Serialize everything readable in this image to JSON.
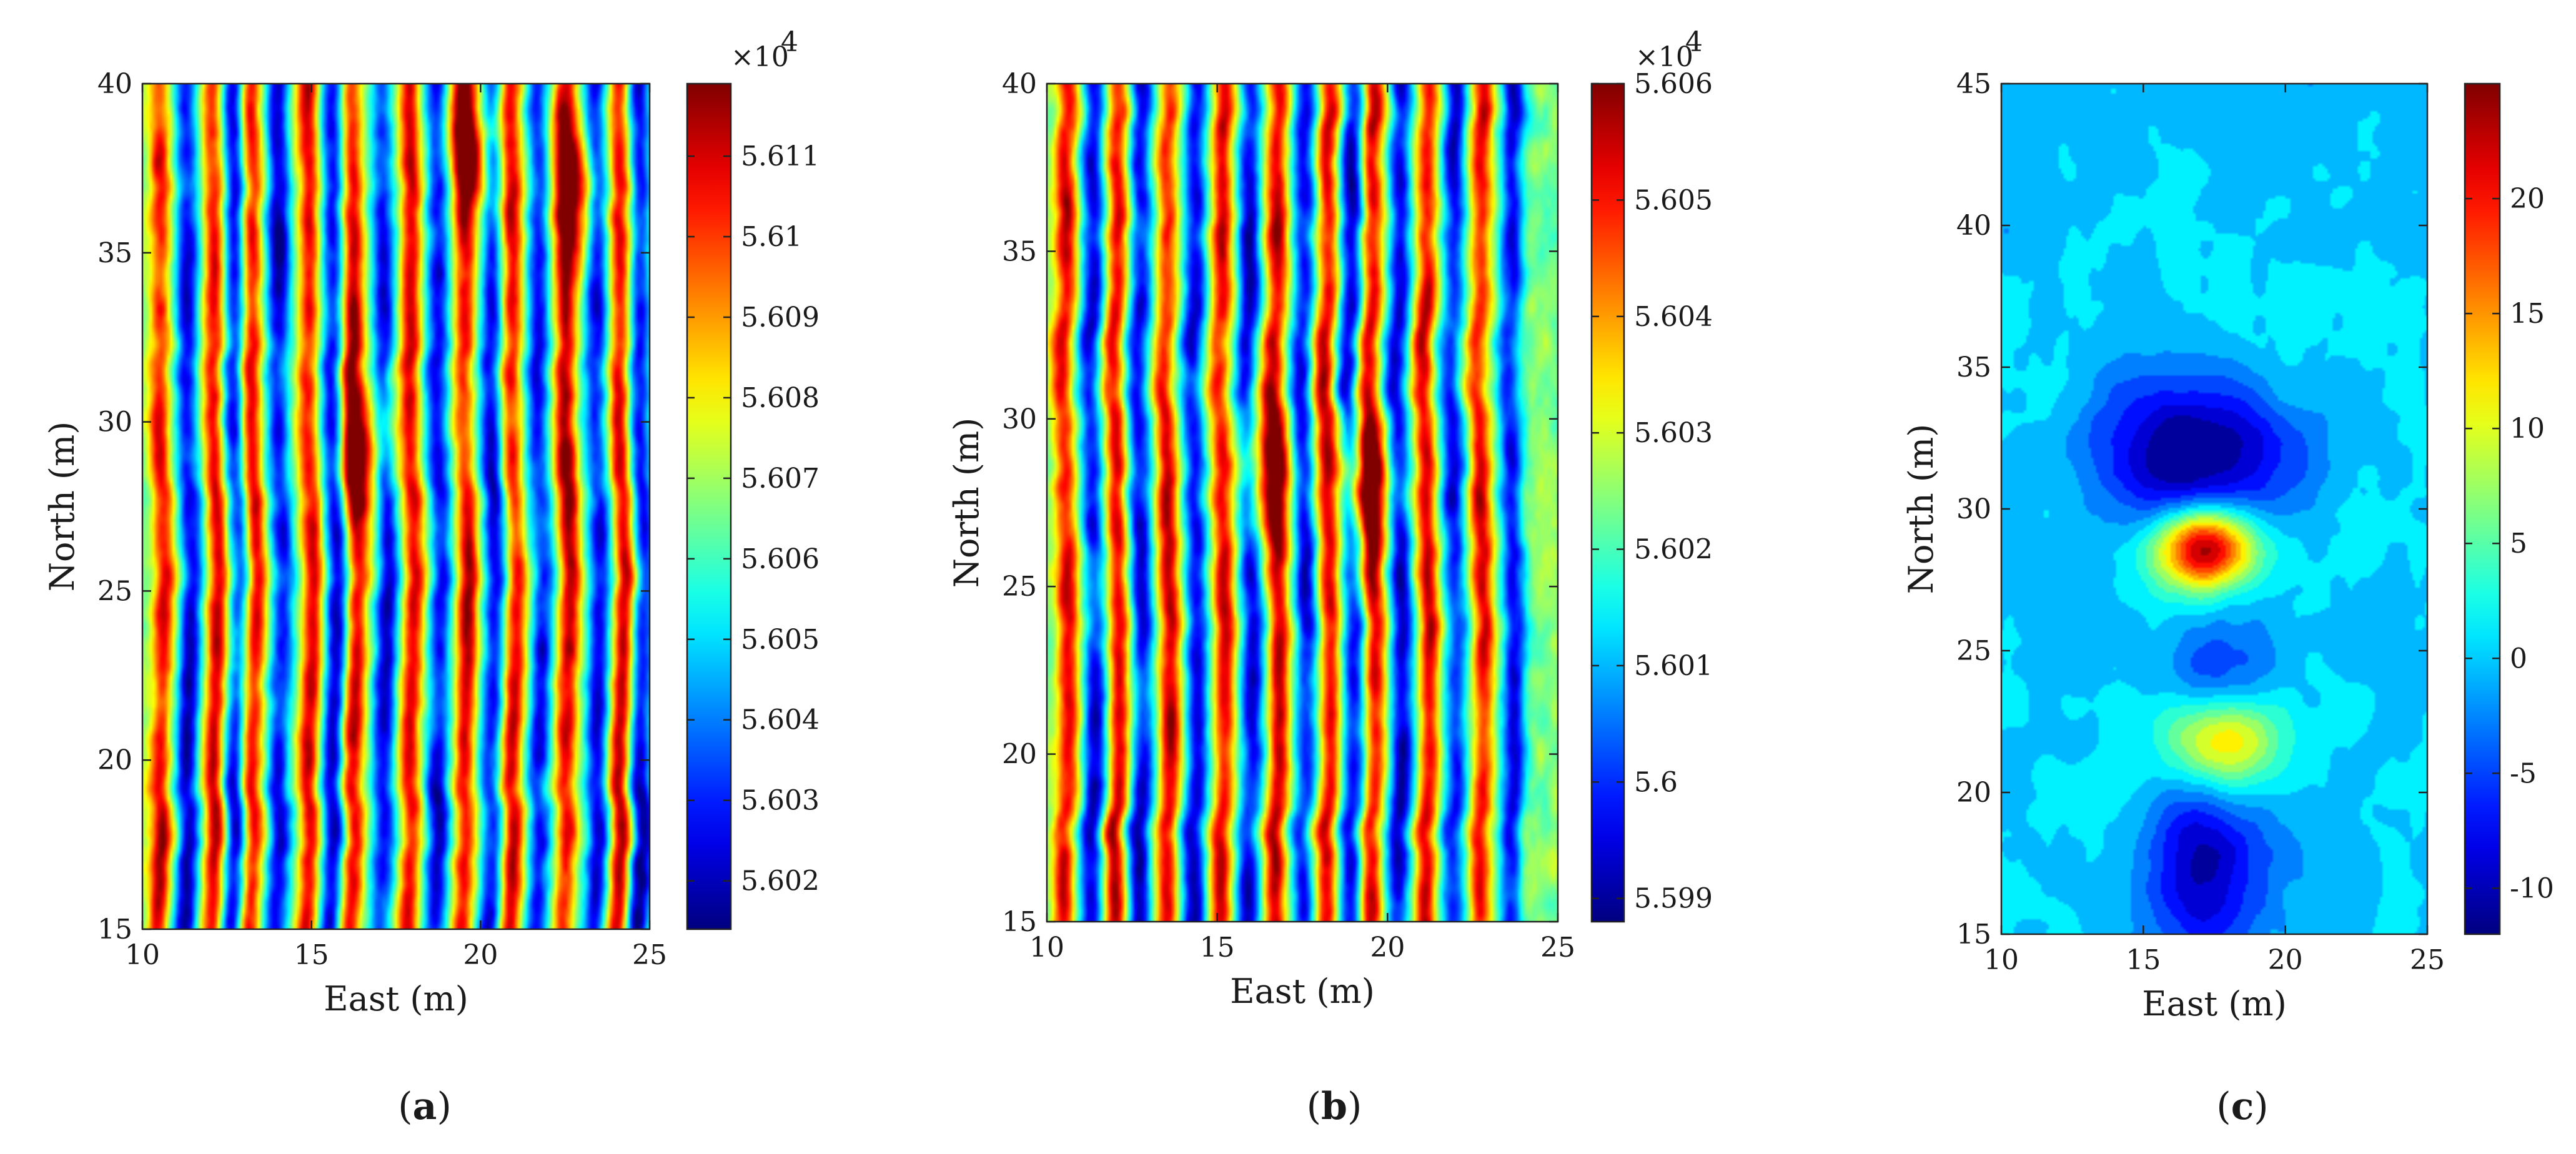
{
  "chart_data": [
    {
      "id": "a",
      "type": "heatmap",
      "caption_open": "(",
      "caption_letter": "a",
      "caption_close": ")",
      "xlabel": "East (m)",
      "ylabel": "North (m)",
      "xlim": [
        10,
        25
      ],
      "ylim": [
        15,
        40
      ],
      "xticks": [
        10,
        15,
        20,
        25
      ],
      "yticks": [
        15,
        20,
        25,
        30,
        35,
        40
      ],
      "colorbar": {
        "multiplier_base": "×10",
        "multiplier_exp": "4",
        "range": [
          5.6014,
          5.6119
        ],
        "ticks": [
          5.602,
          5.603,
          5.604,
          5.605,
          5.606,
          5.607,
          5.608,
          5.609,
          5.61,
          5.611
        ],
        "tick_labels": [
          "5.602",
          "5.603",
          "5.604",
          "5.605",
          "5.606",
          "5.607",
          "5.608",
          "5.609",
          "5.61",
          "5.611"
        ]
      },
      "field": {
        "pattern": "north-south striping from line-to-line magnetometer survey",
        "high_stripes_east_m": [
          10.6,
          12.2,
          13.3,
          15.0,
          16.3,
          18.0,
          19.6,
          21.0,
          22.6,
          24.2
        ],
        "low_stripes_east_m": [
          11.4,
          12.8,
          14.1,
          15.7,
          17.2,
          18.8,
          20.4,
          21.8,
          23.5,
          24.8
        ],
        "anomalies": [
          {
            "east": 16.6,
            "north": 29.0,
            "sign": "high"
          },
          {
            "east": 19.8,
            "north": 38.0,
            "sign": "high"
          },
          {
            "east": 22.8,
            "north": 37.0,
            "sign": "high"
          }
        ]
      }
    },
    {
      "id": "b",
      "type": "heatmap",
      "caption_open": "(",
      "caption_letter": "b",
      "caption_close": ")",
      "xlabel": "East (m)",
      "ylabel": "North (m)",
      "xlim": [
        10,
        25
      ],
      "ylim": [
        15,
        40
      ],
      "xticks": [
        10,
        15,
        20,
        25
      ],
      "yticks": [
        15,
        20,
        25,
        30,
        35,
        40
      ],
      "colorbar": {
        "multiplier_base": "×10",
        "multiplier_exp": "4",
        "range": [
          5.5988,
          5.606
        ],
        "ticks": [
          5.599,
          5.6,
          5.601,
          5.602,
          5.603,
          5.604,
          5.605,
          5.606
        ],
        "tick_labels": [
          "5.599",
          "5.6",
          "5.601",
          "5.602",
          "5.603",
          "5.604",
          "5.605",
          "5.606"
        ]
      },
      "field": {
        "pattern": "north-south striping, corrected survey lines",
        "high_stripes_east_m": [
          10.5,
          12.0,
          13.5,
          15.1,
          16.7,
          18.2,
          19.5,
          21.1,
          22.7
        ],
        "low_stripes_east_m": [
          11.3,
          12.7,
          14.3,
          15.9,
          17.5,
          18.9,
          20.3,
          21.9,
          23.6
        ],
        "anomalies": [
          {
            "east": 16.5,
            "north": 28.5,
            "sign": "high"
          },
          {
            "east": 19.3,
            "north": 28.0,
            "sign": "high"
          }
        ]
      }
    },
    {
      "id": "c",
      "type": "heatmap",
      "caption_open": "(",
      "caption_letter": "c",
      "caption_close": ")",
      "xlabel": "East (m)",
      "ylabel": "North (m)",
      "xlim": [
        10,
        25
      ],
      "ylim": [
        15,
        45
      ],
      "xticks": [
        10,
        15,
        20,
        25
      ],
      "yticks": [
        15,
        20,
        25,
        30,
        35,
        40,
        45
      ],
      "colorbar": {
        "range": [
          -12,
          25
        ],
        "ticks": [
          -10,
          -5,
          0,
          5,
          10,
          15,
          20
        ],
        "tick_labels": [
          "-10",
          "-5",
          "0",
          "5",
          "10",
          "15",
          "20"
        ]
      },
      "field": {
        "pattern": "smooth filled-contour anomaly map",
        "background": 0,
        "anomalies": [
          {
            "east": 17.2,
            "north": 28.6,
            "amplitude": 25,
            "sign": "high"
          },
          {
            "east": 16.8,
            "north": 32.0,
            "amplitude": -12,
            "sign": "low"
          },
          {
            "east": 17.8,
            "north": 21.8,
            "amplitude": 14,
            "sign": "high"
          },
          {
            "east": 17.3,
            "north": 17.5,
            "amplitude": -11,
            "sign": "low"
          },
          {
            "east": 17.5,
            "north": 24.0,
            "amplitude": -7,
            "sign": "low"
          }
        ]
      }
    }
  ]
}
